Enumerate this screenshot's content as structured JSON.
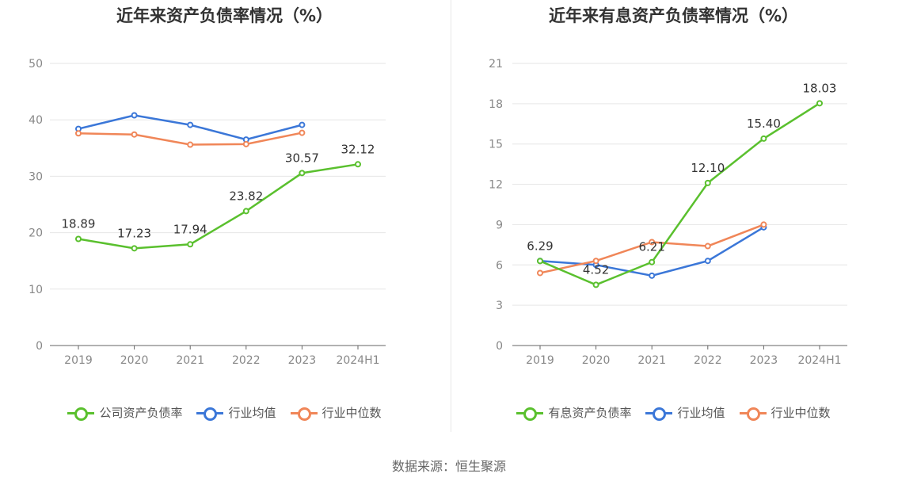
{
  "source": "数据来源：恒生聚源",
  "chart_data": [
    {
      "type": "line",
      "title": "近年来资产负债率情况（%）",
      "categories": [
        "2019",
        "2020",
        "2021",
        "2022",
        "2023",
        "2024H1"
      ],
      "ylim": [
        0,
        50
      ],
      "yticks": [
        0,
        10,
        20,
        30,
        40,
        50
      ],
      "grid": true,
      "legend_position": "bottom",
      "series": [
        {
          "name": "公司资产负债率",
          "color": "#5ac02e",
          "values": [
            18.89,
            17.23,
            17.94,
            23.82,
            30.57,
            32.12
          ],
          "labels": [
            "18.89",
            "17.23",
            "17.94",
            "23.82",
            "30.57",
            "32.12"
          ]
        },
        {
          "name": "行业均值",
          "color": "#3b77d8",
          "values": [
            38.4,
            40.8,
            39.1,
            36.5,
            39.1,
            null
          ],
          "labels": []
        },
        {
          "name": "行业中位数",
          "color": "#f08658",
          "values": [
            37.6,
            37.4,
            35.6,
            35.7,
            37.7,
            null
          ],
          "labels": []
        }
      ]
    },
    {
      "type": "line",
      "title": "近年来有息资产负债率情况（%）",
      "categories": [
        "2019",
        "2020",
        "2021",
        "2022",
        "2023",
        "2024H1"
      ],
      "ylim": [
        0,
        21
      ],
      "yticks": [
        0,
        3,
        6,
        9,
        12,
        15,
        18,
        21
      ],
      "grid": true,
      "legend_position": "bottom",
      "series": [
        {
          "name": "有息资产负债率",
          "color": "#5ac02e",
          "values": [
            6.29,
            4.52,
            6.21,
            12.1,
            15.4,
            18.03
          ],
          "labels": [
            "6.29",
            "4.52",
            "6.21",
            "12.10",
            "15.40",
            "18.03"
          ]
        },
        {
          "name": "行业均值",
          "color": "#3b77d8",
          "values": [
            6.3,
            6.0,
            5.2,
            6.3,
            8.8,
            null
          ],
          "labels": []
        },
        {
          "name": "行业中位数",
          "color": "#f08658",
          "values": [
            5.4,
            6.3,
            7.7,
            7.4,
            9.0,
            null
          ],
          "labels": []
        }
      ]
    }
  ]
}
